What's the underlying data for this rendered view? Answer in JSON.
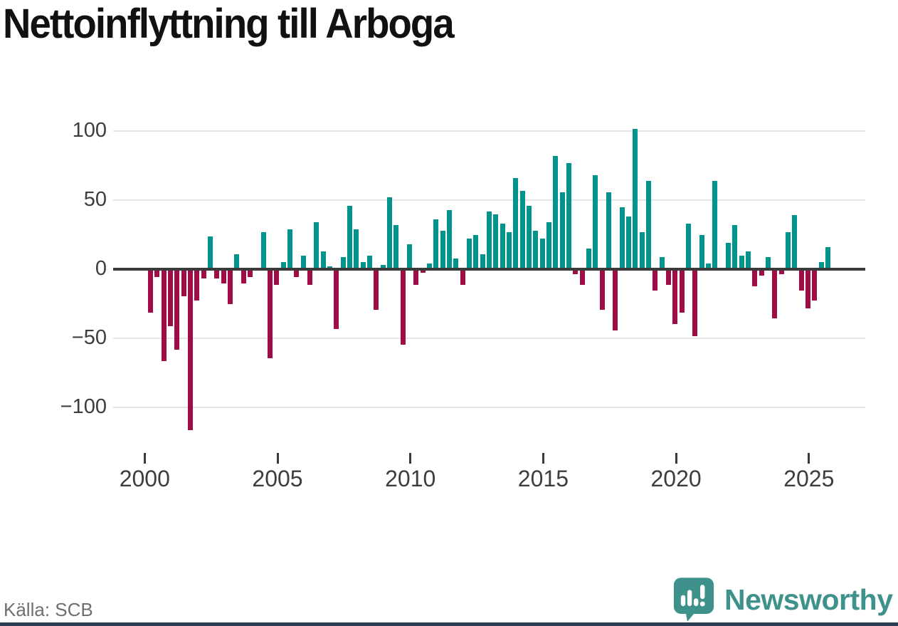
{
  "title": "Nettoinflyttning till Arboga",
  "source_note": "Källa: SCB",
  "logo": {
    "wordmark": "Newsworthy",
    "icon": "bar-chart-exclamation-speech-bubble"
  },
  "colors": {
    "positive": "#00948C",
    "negative": "#A00D46",
    "axis": "#3A3A3A",
    "grid": "#E4E4E4",
    "tick_text": "#3D3D3D",
    "title_text": "#111111",
    "source_text": "#6E6E73",
    "brand": "#3E928B",
    "bottom_strip": "#2E3D4F"
  },
  "chart_data": {
    "type": "bar",
    "title": "Nettoinflyttning till Arboga",
    "xlabel": "",
    "ylabel": "",
    "grid": "horizontal",
    "legend": "none",
    "ylim": [
      -120,
      112
    ],
    "yticks": [
      100,
      50,
      0,
      -50,
      -100
    ],
    "xtick_labels": [
      "2000",
      "2005",
      "2010",
      "2015",
      "2020",
      "2025"
    ],
    "bar_sign_colors": {
      "positive": "#00948C",
      "negative": "#A00D46"
    },
    "periods": [
      "2000Q1",
      "2000Q2",
      "2000Q3",
      "2000Q4",
      "2001Q1",
      "2001Q2",
      "2001Q3",
      "2001Q4",
      "2002Q1",
      "2002Q2",
      "2002Q3",
      "2002Q4",
      "2003Q1",
      "2003Q2",
      "2003Q3",
      "2003Q4",
      "2004Q1",
      "2004Q2",
      "2004Q3",
      "2004Q4",
      "2005Q1",
      "2005Q2",
      "2005Q3",
      "2005Q4",
      "2006Q1",
      "2006Q2",
      "2006Q3",
      "2006Q4",
      "2007Q1",
      "2007Q2",
      "2007Q3",
      "2007Q4",
      "2008Q1",
      "2008Q2",
      "2008Q3",
      "2008Q4",
      "2009Q1",
      "2009Q2",
      "2009Q3",
      "2009Q4",
      "2010Q1",
      "2010Q2",
      "2010Q3",
      "2010Q4",
      "2011Q1",
      "2011Q2",
      "2011Q3",
      "2011Q4",
      "2012Q1",
      "2012Q2",
      "2012Q3",
      "2012Q4",
      "2013Q1",
      "2013Q2",
      "2013Q3",
      "2013Q4",
      "2014Q1",
      "2014Q2",
      "2014Q3",
      "2014Q4",
      "2015Q1",
      "2015Q2",
      "2015Q3",
      "2015Q4",
      "2016Q1",
      "2016Q2",
      "2016Q3",
      "2016Q4",
      "2017Q1",
      "2017Q2",
      "2017Q3",
      "2017Q4",
      "2018Q1",
      "2018Q2",
      "2018Q3",
      "2018Q4",
      "2019Q1",
      "2019Q2",
      "2019Q3",
      "2019Q4",
      "2020Q1",
      "2020Q2",
      "2020Q3",
      "2020Q4",
      "2021Q1",
      "2021Q2",
      "2021Q3",
      "2021Q4",
      "2022Q1",
      "2022Q2",
      "2022Q3",
      "2022Q4",
      "2023Q1",
      "2023Q2",
      "2023Q3",
      "2023Q4",
      "2024Q1",
      "2024Q2",
      "2024Q3",
      "2024Q4",
      "2025Q1",
      "2025Q2",
      "2025Q3"
    ],
    "values": [
      -31,
      -5,
      -66,
      -41,
      -58,
      -19,
      -116,
      -22,
      -6,
      24,
      -6,
      -10,
      -25,
      11,
      -10,
      -5,
      0,
      27,
      -64,
      -11,
      5,
      29,
      -5,
      10,
      -11,
      34,
      13,
      2,
      -43,
      9,
      46,
      29,
      5,
      10,
      -29,
      3,
      52,
      32,
      -54,
      18,
      -11,
      -2,
      4,
      36,
      28,
      43,
      8,
      -11,
      22,
      25,
      11,
      42,
      40,
      33,
      27,
      66,
      57,
      46,
      28,
      22,
      34,
      82,
      56,
      77,
      -3,
      -11,
      15,
      68,
      -29,
      56,
      -44,
      45,
      38,
      102,
      27,
      64,
      -15,
      9,
      -11,
      -39,
      -31,
      33,
      -48,
      25,
      4,
      64,
      0,
      19,
      32,
      10,
      13,
      -12,
      -4,
      9,
      -35,
      -3,
      27,
      39,
      -15,
      -28,
      -22,
      5,
      16
    ]
  }
}
